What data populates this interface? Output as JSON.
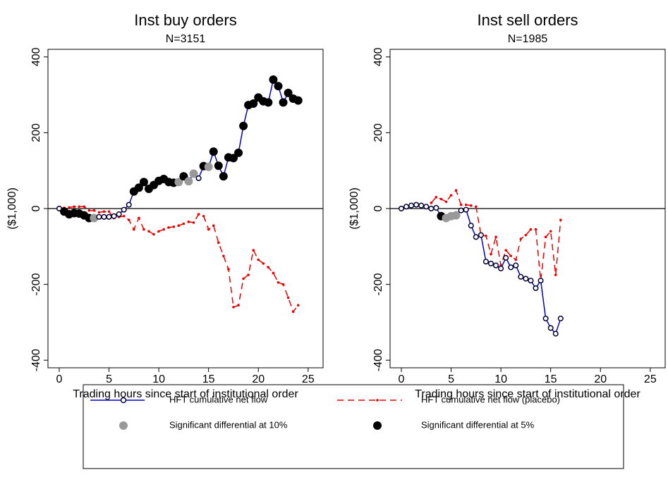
{
  "chart_data": [
    {
      "type": "line",
      "title": "Inst buy orders",
      "subtitle": "N=3151",
      "x_label": "Trading hours since start of institutional order",
      "y_label": "($1,000)",
      "xlim": [
        -1.13,
        26.5
      ],
      "ylim": [
        -420,
        420
      ],
      "xticks": [
        0,
        5,
        10,
        15,
        20,
        25
      ],
      "yticks": [
        -400,
        -200,
        0,
        200,
        400
      ],
      "x": [
        0,
        0.5,
        1,
        1.5,
        2,
        2.5,
        3,
        3.5,
        4,
        4.5,
        5,
        5.5,
        6,
        6.5,
        7,
        7.5,
        8,
        8.5,
        9,
        9.5,
        10,
        10.5,
        11,
        11.5,
        12,
        12.5,
        13,
        13.5,
        14,
        14.5,
        15,
        15.5,
        16,
        16.5,
        17,
        17.5,
        18,
        18.5,
        19,
        19.5,
        20,
        20.5,
        21,
        21.5,
        22,
        22.5,
        23,
        23.5,
        24
      ],
      "series": [
        {
          "name": "HFT cumulative net flow",
          "color": "#0000cc",
          "style": "solid",
          "values": [
            0,
            -8,
            -15,
            -12,
            -13,
            -18,
            -25,
            -25,
            -22,
            -22,
            -22,
            -20,
            -15,
            -3,
            10,
            45,
            55,
            70,
            52,
            62,
            73,
            78,
            70,
            68,
            70,
            85,
            72,
            92,
            80,
            112,
            110,
            150,
            113,
            85,
            135,
            133,
            147,
            218,
            273,
            277,
            293,
            283,
            280,
            340,
            323,
            280,
            305,
            290,
            285
          ],
          "marker_fill": [
            "none",
            "#000",
            "#000",
            "#000",
            "#000",
            "#000",
            "#000",
            "#999",
            "none",
            "none",
            "none",
            "none",
            "none",
            "none",
            "none",
            "#000",
            "#000",
            "#000",
            "#000",
            "#000",
            "#000",
            "#000",
            "#000",
            "#000",
            "#999",
            "#000",
            "#999",
            "#999",
            "none",
            "#000",
            "#999",
            "#000",
            "#000",
            "#000",
            "#000",
            "#000",
            "#000",
            "#000",
            "#000",
            "#000",
            "#000",
            "#000",
            "#000",
            "#000",
            "#000",
            "#000",
            "#000",
            "#000",
            "#000"
          ]
        },
        {
          "name": "HFT cumulative net flow (placebo)",
          "color": "#ee0000",
          "style": "dashed",
          "values": [
            0,
            2,
            3,
            5,
            5,
            5,
            -5,
            -5,
            -10,
            -8,
            -8,
            -25,
            -22,
            -20,
            -30,
            -55,
            -25,
            -55,
            -60,
            -68,
            -60,
            -55,
            -50,
            -48,
            -45,
            -40,
            -35,
            -37,
            -15,
            -20,
            -55,
            -45,
            -90,
            -125,
            -160,
            -260,
            -255,
            -185,
            -175,
            -110,
            -135,
            -145,
            -155,
            -170,
            -195,
            -200,
            -235,
            -272,
            -255
          ]
        }
      ],
      "marker_key": [
        {
          "name": "Significant differential at 10%",
          "color": "#999"
        },
        {
          "name": "Significant differential at 5%",
          "color": "#000"
        }
      ]
    },
    {
      "type": "line",
      "title": "Inst sell orders",
      "subtitle": "N=1985",
      "x_label": "Trading hours since start of institutional order",
      "y_label": "($1,000)",
      "xlim": [
        -1.13,
        26.5
      ],
      "ylim": [
        -420,
        420
      ],
      "xticks": [
        0,
        5,
        10,
        15,
        20,
        25
      ],
      "yticks": [
        -400,
        -200,
        0,
        200,
        400
      ],
      "x": [
        0,
        0.5,
        1,
        1.5,
        2,
        2.5,
        3,
        3.5,
        4,
        4.5,
        5,
        5.5,
        6,
        6.5,
        7,
        7.5,
        8,
        8.5,
        9,
        9.5,
        10,
        10.5,
        11,
        11.5,
        12,
        12.5,
        13,
        13.5,
        14,
        14.5,
        15,
        15.5,
        16
      ],
      "series": [
        {
          "name": "HFT cumulative net flow",
          "color": "#0000cc",
          "style": "solid",
          "values": [
            0,
            5,
            8,
            10,
            8,
            5,
            0,
            2,
            -20,
            -25,
            -20,
            -18,
            -5,
            -3,
            -45,
            -75,
            -70,
            -140,
            -145,
            -150,
            -158,
            -130,
            -155,
            -150,
            -180,
            -185,
            -190,
            -210,
            -190,
            -290,
            -315,
            -330,
            -290
          ],
          "marker_fill": [
            "none",
            "none",
            "none",
            "none",
            "none",
            "none",
            "none",
            "none",
            "#000",
            "#999",
            "#999",
            "#999",
            "none",
            "none",
            "none",
            "none",
            "none",
            "none",
            "none",
            "none",
            "none",
            "none",
            "none",
            "none",
            "none",
            "none",
            "none",
            "none",
            "none",
            "none",
            "none",
            "none",
            "none"
          ]
        },
        {
          "name": "HFT cumulative net flow (placebo)",
          "color": "#ee0000",
          "style": "dashed",
          "values": [
            0,
            3,
            5,
            12,
            10,
            8,
            15,
            30,
            25,
            18,
            35,
            48,
            10,
            10,
            8,
            5,
            -70,
            -72,
            -120,
            -75,
            -150,
            -110,
            -125,
            -135,
            -80,
            -70,
            -55,
            -55,
            -190,
            -75,
            -60,
            -175,
            -30
          ]
        }
      ]
    }
  ]
}
